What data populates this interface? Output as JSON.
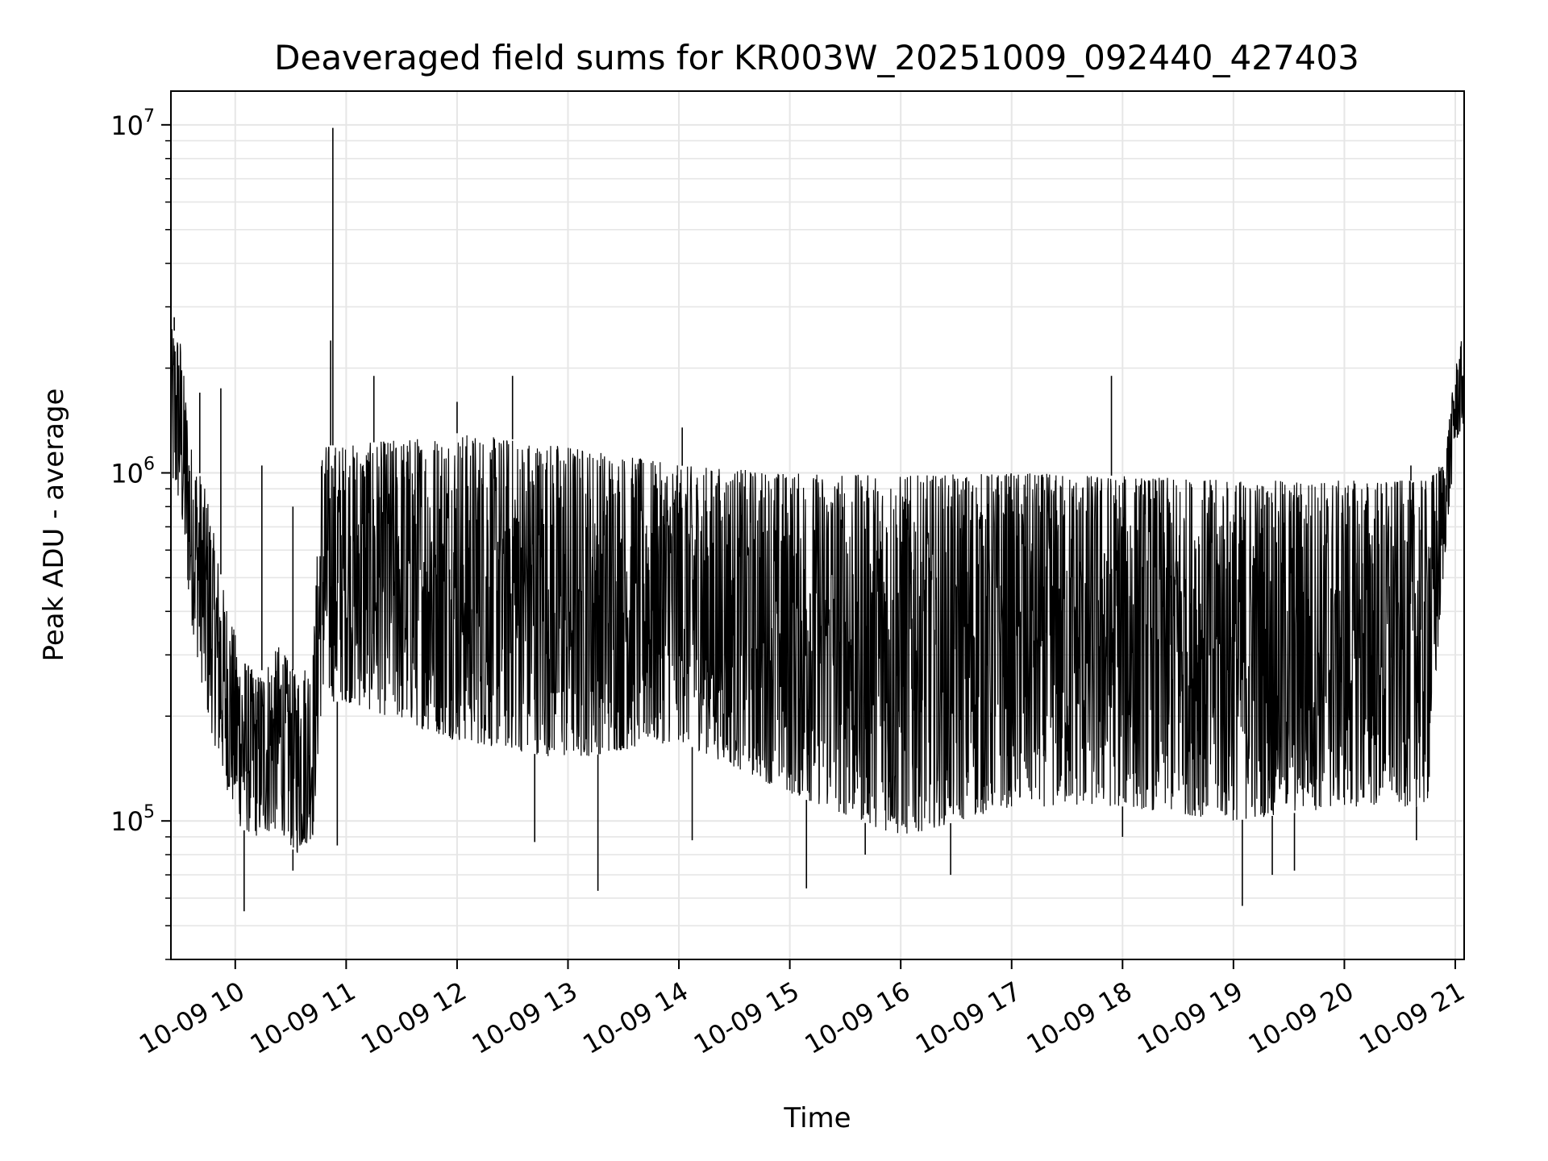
{
  "chart_data": {
    "type": "line",
    "title": "Deaveraged field sums for KR003W_20251009_092440_427403",
    "xlabel": "Time",
    "ylabel": "Peak ADU - average",
    "yscale": "log",
    "ylim": [
      40000,
      12500000
    ],
    "xlim": [
      9.42,
      21.08
    ],
    "grid": true,
    "line_color": "#000000",
    "grid_color": "#e6e6e6",
    "x_ticks": [
      {
        "value": 10,
        "label": "10-09 10"
      },
      {
        "value": 11,
        "label": "10-09 11"
      },
      {
        "value": 12,
        "label": "10-09 12"
      },
      {
        "value": 13,
        "label": "10-09 13"
      },
      {
        "value": 14,
        "label": "10-09 14"
      },
      {
        "value": 15,
        "label": "10-09 15"
      },
      {
        "value": 16,
        "label": "10-09 16"
      },
      {
        "value": 17,
        "label": "10-09 17"
      },
      {
        "value": 18,
        "label": "10-09 18"
      },
      {
        "value": 19,
        "label": "10-09 19"
      },
      {
        "value": 20,
        "label": "10-09 20"
      },
      {
        "value": 21,
        "label": "10-09 21"
      }
    ],
    "y_ticks": [
      {
        "value": 100000,
        "base": "10",
        "exp": "5"
      },
      {
        "value": 1000000,
        "base": "10",
        "exp": "6"
      },
      {
        "value": 10000000,
        "base": "10",
        "exp": "7"
      }
    ],
    "series": [
      {
        "name": "deaveraged field sum",
        "envelope": [
          {
            "x": 9.42,
            "low": 900000,
            "high": 2600000
          },
          {
            "x": 9.5,
            "low": 800000,
            "high": 2500000
          },
          {
            "x": 9.6,
            "low": 380000,
            "high": 1200000
          },
          {
            "x": 9.75,
            "low": 200000,
            "high": 850000
          },
          {
            "x": 9.9,
            "low": 130000,
            "high": 450000
          },
          {
            "x": 10.05,
            "low": 95000,
            "high": 300000
          },
          {
            "x": 10.2,
            "low": 90000,
            "high": 260000
          },
          {
            "x": 10.4,
            "low": 95000,
            "high": 320000
          },
          {
            "x": 10.55,
            "low": 80000,
            "high": 260000
          },
          {
            "x": 10.7,
            "low": 90000,
            "high": 300000
          },
          {
            "x": 10.78,
            "low": 220000,
            "high": 1200000
          },
          {
            "x": 11.0,
            "low": 220000,
            "high": 1200000
          },
          {
            "x": 12.0,
            "low": 170000,
            "high": 1300000
          },
          {
            "x": 13.0,
            "low": 150000,
            "high": 1200000
          },
          {
            "x": 14.0,
            "low": 170000,
            "high": 1050000
          },
          {
            "x": 15.0,
            "low": 120000,
            "high": 1000000
          },
          {
            "x": 16.0,
            "low": 90000,
            "high": 980000
          },
          {
            "x": 17.0,
            "low": 110000,
            "high": 1000000
          },
          {
            "x": 18.0,
            "low": 110000,
            "high": 980000
          },
          {
            "x": 19.0,
            "low": 100000,
            "high": 950000
          },
          {
            "x": 20.0,
            "low": 110000,
            "high": 950000
          },
          {
            "x": 20.75,
            "low": 110000,
            "high": 950000
          },
          {
            "x": 20.9,
            "low": 550000,
            "high": 1100000
          },
          {
            "x": 21.0,
            "low": 1200000,
            "high": 2000000
          },
          {
            "x": 21.08,
            "low": 1400000,
            "high": 2600000
          }
        ],
        "spikes": [
          {
            "x": 9.45,
            "value": 2800000
          },
          {
            "x": 9.68,
            "value": 1700000
          },
          {
            "x": 9.87,
            "value": 1750000
          },
          {
            "x": 10.08,
            "value": 55000
          },
          {
            "x": 10.24,
            "value": 1050000
          },
          {
            "x": 10.52,
            "value": 800000
          },
          {
            "x": 10.52,
            "value": 72000
          },
          {
            "x": 10.86,
            "value": 2400000
          },
          {
            "x": 10.88,
            "value": 9800000
          },
          {
            "x": 10.92,
            "value": 85000
          },
          {
            "x": 11.25,
            "value": 1900000
          },
          {
            "x": 12.0,
            "value": 1600000
          },
          {
            "x": 12.5,
            "value": 1900000
          },
          {
            "x": 12.7,
            "value": 87000
          },
          {
            "x": 13.27,
            "value": 63000
          },
          {
            "x": 14.03,
            "value": 1350000
          },
          {
            "x": 14.12,
            "value": 88000
          },
          {
            "x": 15.15,
            "value": 64000
          },
          {
            "x": 15.68,
            "value": 80000
          },
          {
            "x": 16.45,
            "value": 70000
          },
          {
            "x": 17.9,
            "value": 1900000
          },
          {
            "x": 18.0,
            "value": 90000
          },
          {
            "x": 19.08,
            "value": 57000
          },
          {
            "x": 19.35,
            "value": 70000
          },
          {
            "x": 19.55,
            "value": 72000
          },
          {
            "x": 20.6,
            "value": 1050000
          },
          {
            "x": 20.65,
            "value": 88000
          }
        ]
      }
    ]
  }
}
